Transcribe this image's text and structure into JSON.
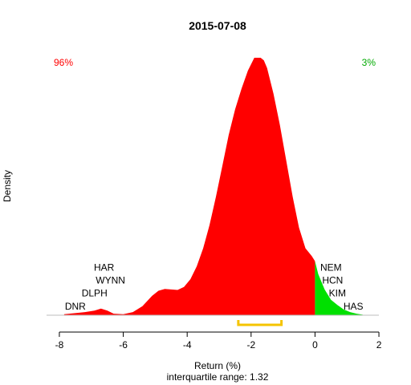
{
  "chart_data": {
    "type": "area",
    "title": "2015-07-08",
    "xlabel": "Return (%)",
    "ylabel": "Density",
    "subtitle": "interquartile range: 1.32",
    "xlim": [
      -8.3,
      2.2
    ],
    "ylim": [
      0,
      1.0
    ],
    "x_ticks": [
      -8,
      -6,
      -4,
      -2,
      0,
      2
    ],
    "x_tick_labels": [
      "-8",
      "-6",
      "-4",
      "-2",
      "0",
      "2"
    ],
    "density_x": [
      -7.85,
      -7.5,
      -7.2,
      -6.9,
      -6.7,
      -6.5,
      -6.3,
      -6.0,
      -5.7,
      -5.4,
      -5.1,
      -4.9,
      -4.7,
      -4.5,
      -4.3,
      -4.1,
      -3.9,
      -3.7,
      -3.5,
      -3.3,
      -3.1,
      -2.9,
      -2.7,
      -2.5,
      -2.3,
      -2.1,
      -1.9,
      -1.7,
      -1.6,
      -1.5,
      -1.3,
      -1.1,
      -0.9,
      -0.7,
      -0.5,
      -0.3,
      -0.1,
      0.0,
      0.1,
      0.3,
      0.5,
      0.7,
      0.9,
      1.1,
      1.3,
      1.5
    ],
    "density_y": [
      0.004,
      0.008,
      0.012,
      0.018,
      0.026,
      0.018,
      0.006,
      0.004,
      0.012,
      0.035,
      0.075,
      0.095,
      0.102,
      0.1,
      0.098,
      0.11,
      0.14,
      0.19,
      0.26,
      0.35,
      0.46,
      0.58,
      0.7,
      0.8,
      0.88,
      0.95,
      1.0,
      1.0,
      0.99,
      0.96,
      0.86,
      0.74,
      0.6,
      0.46,
      0.34,
      0.26,
      0.23,
      0.21,
      0.16,
      0.1,
      0.06,
      0.04,
      0.022,
      0.012,
      0.006,
      0.002
    ],
    "left_region_color": "#ff0000",
    "right_region_color": "#00e000",
    "split_x": 0,
    "left_pct_label": "96%",
    "right_pct_label": "3%",
    "left_pct_color": "#ff0000",
    "right_pct_color": "#00aa00",
    "iqr_bracket": {
      "x_start": -2.4,
      "x_end": -1.05,
      "color": "#f5c400"
    },
    "left_labels": [
      {
        "text": "HAR",
        "x": -6.6,
        "y": 0.186
      },
      {
        "text": "WYNN",
        "x": -6.4,
        "y": 0.135
      },
      {
        "text": "DLPH",
        "x": -6.9,
        "y": 0.085
      },
      {
        "text": "DNR",
        "x": -7.5,
        "y": 0.035
      }
    ],
    "right_labels": [
      {
        "text": "NEM",
        "x": 0.5,
        "y": 0.186
      },
      {
        "text": "HCN",
        "x": 0.55,
        "y": 0.135
      },
      {
        "text": "KIM",
        "x": 0.7,
        "y": 0.085
      },
      {
        "text": "HAS",
        "x": 1.2,
        "y": 0.035
      }
    ]
  }
}
